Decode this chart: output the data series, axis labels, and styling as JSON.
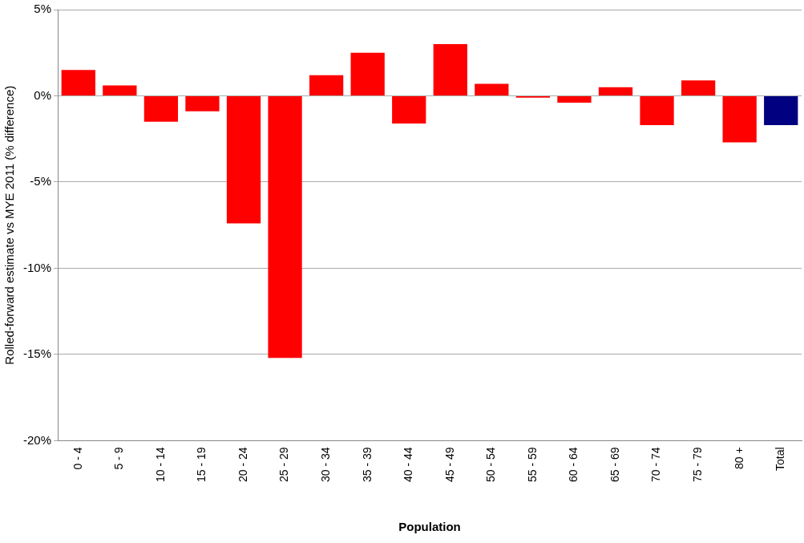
{
  "chart_data": {
    "type": "bar",
    "xlabel": "Population",
    "ylabel": "Rolled-forward estimate vs MYE 2011 (% difference)",
    "categories": [
      "0 - 4",
      "5 - 9",
      "10 - 14",
      "15 - 19",
      "20 - 24",
      "25 - 29",
      "30 - 34",
      "35 - 39",
      "40 - 44",
      "45 - 49",
      "50 - 54",
      "55 - 59",
      "60 - 64",
      "65 - 69",
      "70 - 74",
      "75 - 79",
      "80 +",
      "Total"
    ],
    "values": [
      1.5,
      0.6,
      -1.5,
      -0.9,
      -7.4,
      -15.2,
      1.2,
      2.5,
      -1.6,
      3.0,
      0.7,
      -0.1,
      -0.4,
      0.5,
      -1.7,
      0.9,
      -2.7,
      -1.7
    ],
    "colors": [
      "#ff0000",
      "#ff0000",
      "#ff0000",
      "#ff0000",
      "#ff0000",
      "#ff0000",
      "#ff0000",
      "#ff0000",
      "#ff0000",
      "#ff0000",
      "#ff0000",
      "#ff0000",
      "#ff0000",
      "#ff0000",
      "#ff0000",
      "#ff0000",
      "#ff0000",
      "#000080"
    ],
    "ylim": [
      -20,
      5
    ],
    "yticks": [
      {
        "value": -20,
        "label": "-20%"
      },
      {
        "value": -15,
        "label": "-15%"
      },
      {
        "value": -10,
        "label": "-10%"
      },
      {
        "value": -5,
        "label": "-5%"
      },
      {
        "value": 0,
        "label": "0%"
      },
      {
        "value": 5,
        "label": "5%"
      }
    ],
    "grid": "y",
    "legend": false
  }
}
